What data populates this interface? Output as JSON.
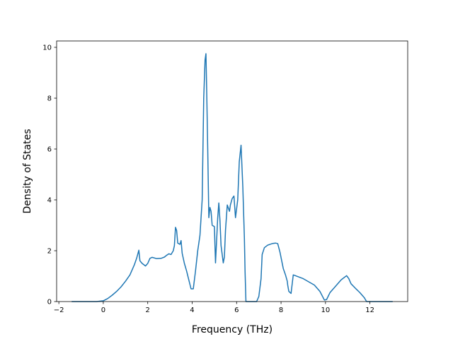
{
  "chart_data": {
    "type": "line",
    "title": "",
    "xlabel": "Frequency (THz)",
    "ylabel": "Density of States",
    "xlim": [
      -2.1,
      13.7
    ],
    "ylim": [
      0,
      10.25
    ],
    "xticks": [
      -2,
      0,
      2,
      4,
      6,
      8,
      10,
      12
    ],
    "xtick_labels": [
      "−2",
      "0",
      "2",
      "4",
      "6",
      "8",
      "10",
      "12"
    ],
    "yticks": [
      0,
      2,
      4,
      6,
      8,
      10
    ],
    "ytick_labels": [
      "0",
      "2",
      "4",
      "6",
      "8",
      "10"
    ],
    "grid": false,
    "legend": "none",
    "line_color": "#1f77b4",
    "series": [
      {
        "x": [
          -1.4,
          -0.3,
          0.0,
          0.2,
          0.4,
          0.6,
          0.8,
          1.0,
          1.2,
          1.4,
          1.5,
          1.6,
          1.65,
          1.75,
          1.9,
          2.0,
          2.1,
          2.2,
          2.4,
          2.6,
          2.75,
          2.85,
          2.95,
          3.05,
          3.15,
          3.2,
          3.25,
          3.3,
          3.35,
          3.45,
          3.5,
          3.55,
          3.65,
          3.75,
          3.85,
          3.95,
          4.05,
          4.15,
          4.25,
          4.35,
          4.45,
          4.52,
          4.58,
          4.62,
          4.66,
          4.7,
          4.75,
          4.8,
          4.85,
          4.9,
          5.0,
          5.05,
          5.1,
          5.15,
          5.2,
          5.25,
          5.3,
          5.4,
          5.45,
          5.5,
          5.58,
          5.68,
          5.72,
          5.8,
          5.88,
          5.95,
          6.05,
          6.12,
          6.2,
          6.28,
          6.35,
          6.38,
          6.42,
          6.9,
          7.0,
          7.1,
          7.15,
          7.25,
          7.4,
          7.6,
          7.75,
          7.85,
          7.95,
          8.1,
          8.2,
          8.28,
          8.3,
          8.35,
          8.45,
          8.55,
          9.0,
          9.5,
          9.75,
          9.95,
          10.05,
          10.2,
          10.5,
          10.7,
          10.95,
          11.05,
          11.15,
          11.35,
          11.55,
          11.75,
          11.85,
          13.0
        ],
        "y": [
          0.0,
          0.0,
          0.03,
          0.12,
          0.25,
          0.4,
          0.58,
          0.8,
          1.05,
          1.45,
          1.7,
          2.02,
          1.6,
          1.5,
          1.4,
          1.5,
          1.7,
          1.74,
          1.69,
          1.7,
          1.75,
          1.82,
          1.88,
          1.85,
          2.0,
          2.2,
          2.92,
          2.8,
          2.3,
          2.25,
          2.4,
          1.9,
          1.5,
          1.2,
          0.85,
          0.5,
          0.5,
          1.2,
          2.0,
          2.6,
          4.0,
          8.0,
          9.5,
          9.75,
          8.0,
          6.0,
          3.3,
          3.7,
          3.55,
          3.0,
          2.95,
          1.52,
          2.4,
          3.3,
          3.88,
          3.2,
          2.2,
          1.52,
          1.75,
          2.8,
          3.8,
          3.55,
          3.8,
          4.05,
          4.15,
          3.3,
          4.0,
          5.5,
          6.15,
          4.5,
          2.5,
          1.2,
          0.0,
          0.0,
          0.2,
          0.9,
          1.85,
          2.12,
          2.22,
          2.28,
          2.3,
          2.28,
          1.95,
          1.3,
          1.05,
          0.8,
          0.65,
          0.4,
          0.32,
          1.05,
          0.9,
          0.65,
          0.4,
          0.06,
          0.08,
          0.35,
          0.65,
          0.85,
          1.02,
          0.9,
          0.7,
          0.52,
          0.35,
          0.15,
          0.0,
          0.0
        ]
      }
    ]
  }
}
